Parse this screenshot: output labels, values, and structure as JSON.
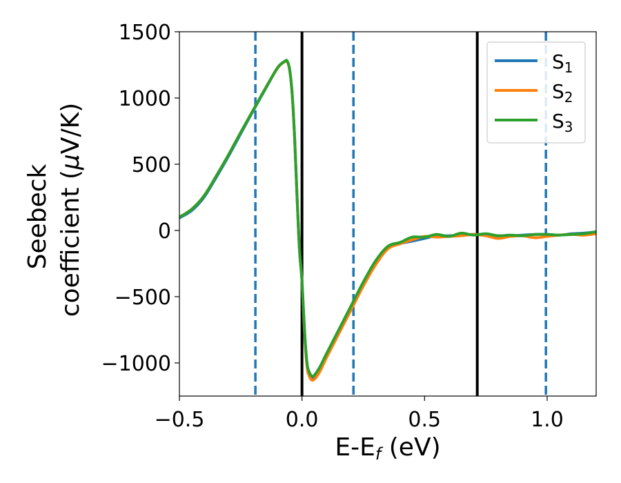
{
  "chart_data": {
    "type": "line",
    "xlabel": "E-E",
    "xlabel_sub": "f",
    "xlabel_unit": " (eV)",
    "ylabel_line1": "Seebeck",
    "ylabel_line2_pre": "coefficient  (",
    "ylabel_line2_mu": "μ",
    "ylabel_line2_post": "V/K)",
    "xlim": [
      -0.5,
      1.2
    ],
    "ylim": [
      -1250,
      1500
    ],
    "xticks": [
      -0.5,
      0.0,
      0.5,
      1.0
    ],
    "xtick_labels": [
      "−0.5",
      "0.0",
      "0.5",
      "1.0"
    ],
    "yticks": [
      -1000,
      -500,
      0,
      500,
      1000,
      1500
    ],
    "ytick_labels": [
      "−1000",
      "−500",
      "0",
      "500",
      "1000",
      "1500"
    ],
    "grid": false,
    "legend_position": "top-right",
    "vlines": [
      {
        "x": -0.19,
        "style": "dashed",
        "color": "#1f77b4"
      },
      {
        "x": 0.0,
        "style": "solid",
        "color": "#000000"
      },
      {
        "x": 0.21,
        "style": "dashed",
        "color": "#1f77b4"
      },
      {
        "x": 0.715,
        "style": "solid",
        "color": "#000000"
      },
      {
        "x": 0.995,
        "style": "dashed",
        "color": "#1f77b4"
      }
    ],
    "series": [
      {
        "name": "S",
        "name_sub": "1",
        "color": "#1f77b4",
        "x": [
          -0.5,
          -0.45,
          -0.4,
          -0.35,
          -0.3,
          -0.25,
          -0.2,
          -0.15,
          -0.1,
          -0.07,
          -0.06,
          -0.05,
          -0.04,
          -0.03,
          -0.02,
          -0.01,
          0.0,
          0.01,
          0.02,
          0.03,
          0.045,
          0.07,
          0.1,
          0.15,
          0.2,
          0.25,
          0.3,
          0.35,
          0.4,
          0.45,
          0.5,
          0.55,
          0.6,
          0.65,
          0.7,
          0.75,
          0.8,
          0.85,
          0.9,
          0.95,
          1.0,
          1.05,
          1.1,
          1.15,
          1.2
        ],
        "y": [
          95,
          150,
          250,
          400,
          560,
          730,
          900,
          1065,
          1225,
          1275,
          1275,
          1210,
          1030,
          700,
          250,
          -150,
          -380,
          -750,
          -1000,
          -1080,
          -1110,
          -1050,
          -940,
          -760,
          -580,
          -400,
          -240,
          -130,
          -100,
          -80,
          -60,
          -40,
          -40,
          -35,
          -30,
          -35,
          -40,
          -40,
          -35,
          -30,
          -30,
          -35,
          -25,
          -20,
          -10
        ]
      },
      {
        "name": "S",
        "name_sub": "2",
        "color": "#ff7f0e",
        "x": [
          -0.5,
          -0.45,
          -0.4,
          -0.35,
          -0.3,
          -0.25,
          -0.2,
          -0.15,
          -0.1,
          -0.07,
          -0.06,
          -0.05,
          -0.04,
          -0.03,
          -0.02,
          -0.01,
          0.0,
          0.01,
          0.02,
          0.03,
          0.045,
          0.07,
          0.1,
          0.15,
          0.2,
          0.25,
          0.3,
          0.35,
          0.4,
          0.45,
          0.5,
          0.55,
          0.6,
          0.65,
          0.7,
          0.75,
          0.8,
          0.85,
          0.9,
          0.95,
          1.0,
          1.05,
          1.1,
          1.15,
          1.2
        ],
        "y": [
          100,
          160,
          260,
          410,
          570,
          740,
          905,
          1070,
          1225,
          1275,
          1275,
          1210,
          1030,
          700,
          250,
          -150,
          -380,
          -760,
          -1020,
          -1100,
          -1130,
          -1075,
          -960,
          -780,
          -600,
          -420,
          -260,
          -140,
          -100,
          -70,
          -45,
          -50,
          -45,
          -40,
          -30,
          -40,
          -60,
          -45,
          -40,
          -55,
          -45,
          -35,
          -30,
          -35,
          -25
        ]
      },
      {
        "name": "S",
        "name_sub": "3",
        "color": "#2ca02c",
        "x": [
          -0.5,
          -0.45,
          -0.4,
          -0.35,
          -0.3,
          -0.25,
          -0.2,
          -0.15,
          -0.1,
          -0.07,
          -0.06,
          -0.05,
          -0.04,
          -0.03,
          -0.02,
          -0.01,
          0.0,
          0.01,
          0.02,
          0.03,
          0.045,
          0.07,
          0.1,
          0.15,
          0.2,
          0.25,
          0.3,
          0.35,
          0.4,
          0.45,
          0.5,
          0.55,
          0.6,
          0.65,
          0.7,
          0.75,
          0.8,
          0.85,
          0.9,
          0.95,
          1.0,
          1.05,
          1.1,
          1.15,
          1.2
        ],
        "y": [
          100,
          160,
          260,
          410,
          570,
          740,
          905,
          1070,
          1228,
          1278,
          1278,
          1212,
          1030,
          700,
          250,
          -150,
          -380,
          -740,
          -990,
          -1070,
          -1100,
          -1040,
          -930,
          -750,
          -570,
          -390,
          -230,
          -120,
          -90,
          -50,
          -50,
          -30,
          -45,
          -20,
          -35,
          -25,
          -40,
          -35,
          -40,
          -30,
          -30,
          -35,
          -30,
          -25,
          -10
        ]
      }
    ]
  }
}
